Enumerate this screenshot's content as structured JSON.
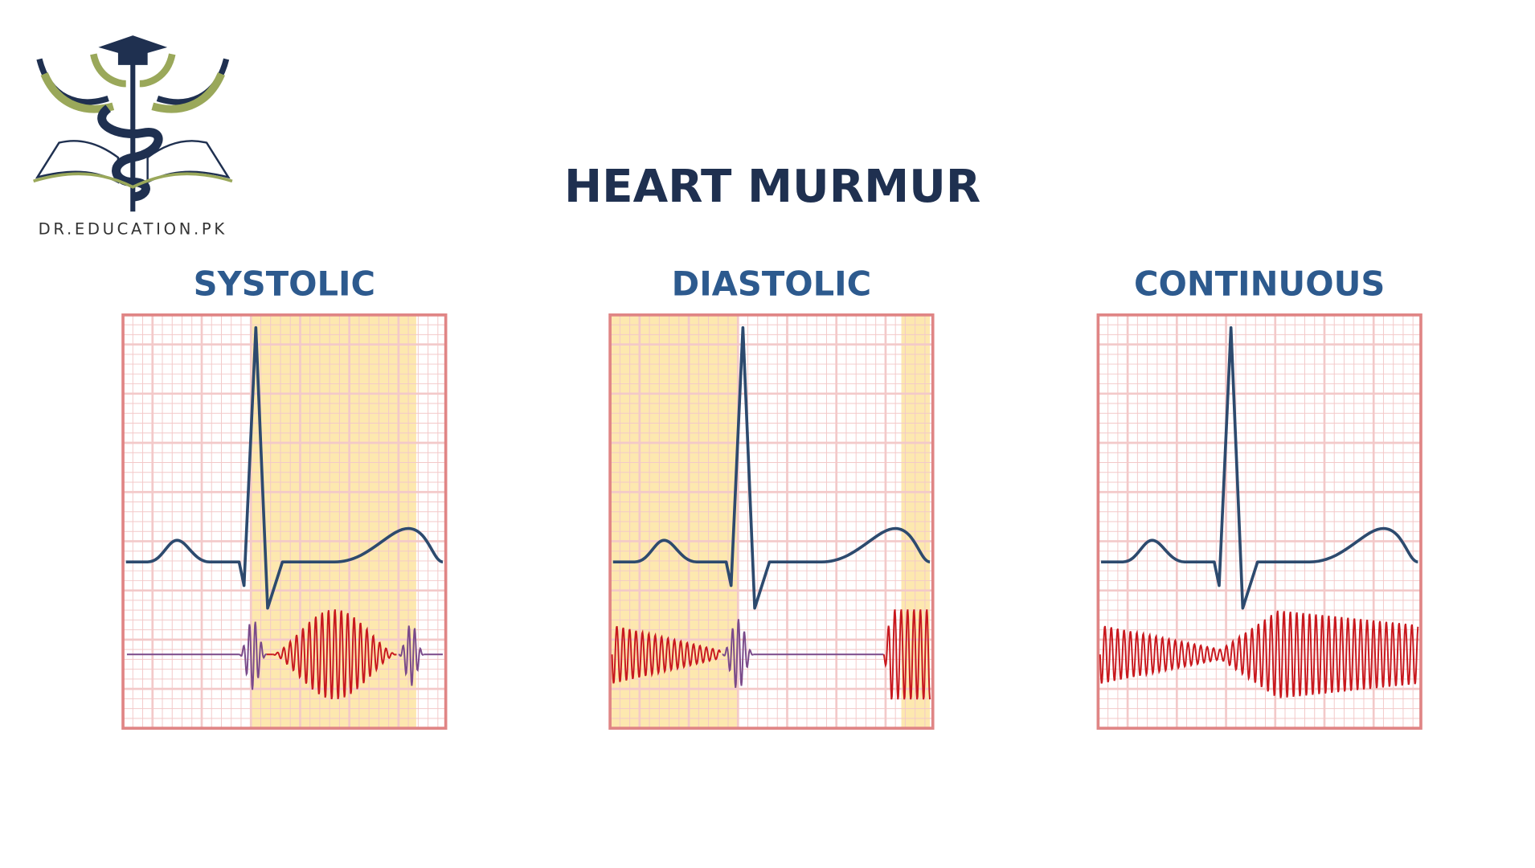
{
  "logo": {
    "text": "DR.EDUCATION.PK"
  },
  "title": "HEART MURMUR",
  "panels": [
    {
      "label": "SYSTOLIC"
    },
    {
      "label": "DIASTOLIC"
    },
    {
      "label": "CONTINUOUS"
    }
  ]
}
